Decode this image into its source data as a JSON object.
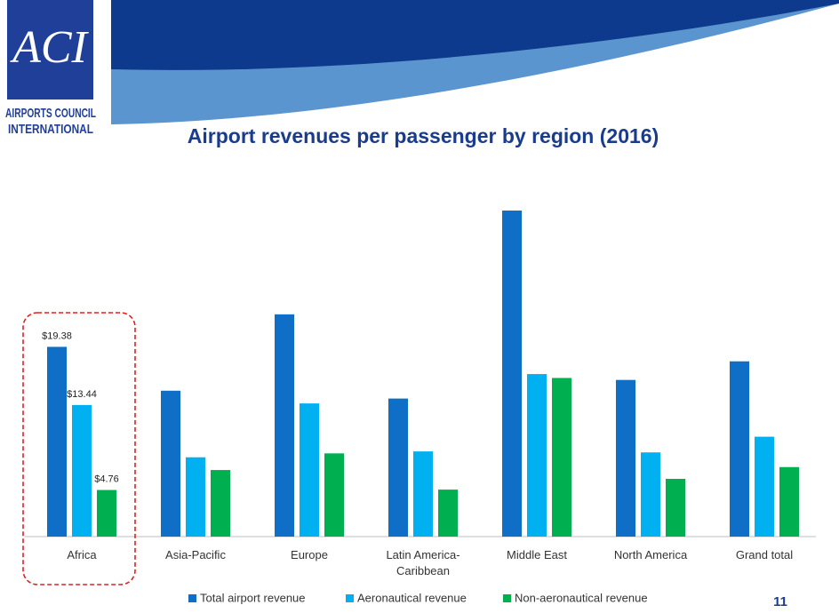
{
  "logo": {
    "mark": "ACI",
    "lines": [
      "AIRPORTS COUNCIL",
      "INTERNATIONAL"
    ]
  },
  "page_number": "11",
  "chart_data": {
    "type": "bar",
    "title": "Airport revenues per passenger by region (2016)",
    "categories": [
      "Africa",
      "Asia-Pacific",
      "Europe",
      "Latin America-Caribbean",
      "Middle East",
      "North America",
      "Grand total"
    ],
    "series": [
      {
        "name": "Total airport revenue",
        "color": "#0f6fc6",
        "values": [
          19.38,
          14.9,
          22.7,
          14.1,
          33.3,
          16.0,
          17.9
        ],
        "value_labels": [
          "$19.38",
          null,
          null,
          null,
          null,
          null,
          null
        ]
      },
      {
        "name": "Aeronautical revenue",
        "color": "#00b0f0",
        "values": [
          13.44,
          8.1,
          13.6,
          8.7,
          16.6,
          8.6,
          10.2
        ],
        "value_labels": [
          "$13.44",
          null,
          null,
          null,
          null,
          null,
          null
        ]
      },
      {
        "name": "Non-aeronautical revenue",
        "color": "#00b050",
        "values": [
          4.76,
          6.8,
          8.5,
          4.8,
          16.2,
          5.9,
          7.1
        ],
        "value_labels": [
          "$4.76",
          null,
          null,
          null,
          null,
          null,
          null
        ]
      }
    ],
    "legend": "bottom"
  }
}
